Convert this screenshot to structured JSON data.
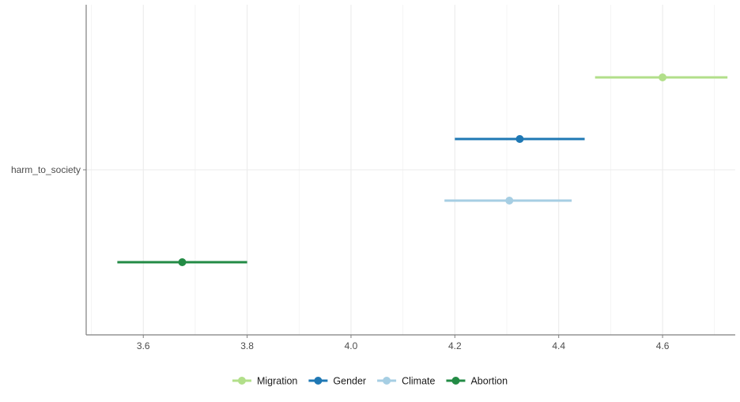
{
  "chart_data": {
    "type": "pointrange",
    "y_category": "harm_to_society",
    "xlim": [
      3.49,
      4.74
    ],
    "x_ticks": [
      3.6,
      3.8,
      4.0,
      4.2,
      4.4,
      4.6
    ],
    "x_tick_labels": [
      "3.6",
      "3.8",
      "4.0",
      "4.2",
      "4.4",
      "4.6"
    ],
    "grid": true,
    "legend_position": "bottom",
    "series": [
      {
        "name": "Migration",
        "color": "#b2df8a",
        "estimate": 4.6,
        "lower": 4.47,
        "upper": 4.725
      },
      {
        "name": "Gender",
        "color": "#1f78b4",
        "estimate": 4.325,
        "lower": 4.2,
        "upper": 4.45
      },
      {
        "name": "Climate",
        "color": "#a6cee3",
        "estimate": 4.305,
        "lower": 4.18,
        "upper": 4.425
      },
      {
        "name": "Abortion",
        "color": "#238b45",
        "estimate": 3.675,
        "lower": 3.55,
        "upper": 3.8
      }
    ]
  }
}
